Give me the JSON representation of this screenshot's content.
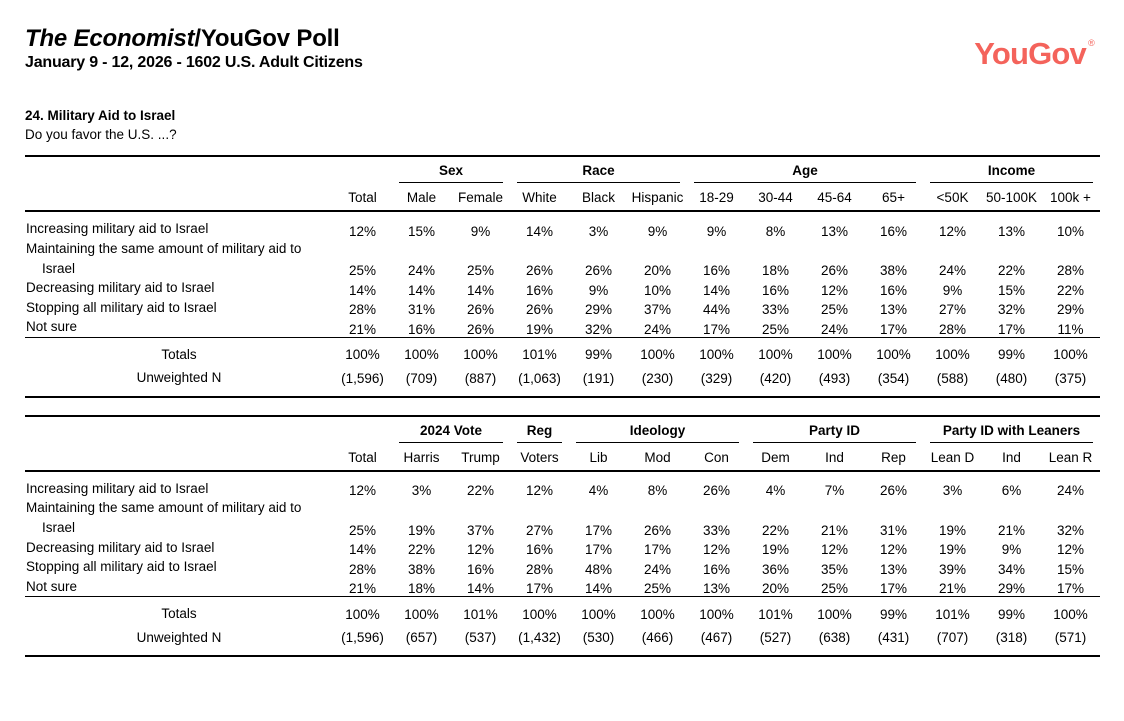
{
  "header": {
    "title_italic": "The Economist",
    "title_rest": "/YouGov Poll",
    "subtitle": "January 9 - 12, 2026 - 1602 U.S. Adult Citizens",
    "logo_text": "YouGov",
    "logo_reg": "®",
    "logo_color": "#F4635B"
  },
  "question": {
    "heading": "24. Military Aid to Israel",
    "text": "Do you favor the U.S. ...?"
  },
  "chart_data": [
    {
      "type": "table",
      "title": "Military Aid to Israel crosstabs by Sex, Race, Age, Income",
      "groups": [
        {
          "label": "",
          "span": 1
        },
        {
          "label": "Sex",
          "span": 2
        },
        {
          "label": "Race",
          "span": 3
        },
        {
          "label": "Age",
          "span": 4
        },
        {
          "label": "Income",
          "span": 3
        }
      ],
      "columns": [
        "Total",
        "Male",
        "Female",
        "White",
        "Black",
        "Hispanic",
        "18-29",
        "30-44",
        "45-64",
        "65+",
        "<50K",
        "50-100K",
        "100k +"
      ],
      "rows": [
        {
          "label": "Increasing military aid to Israel",
          "label2": "",
          "values": [
            "12%",
            "15%",
            "9%",
            "14%",
            "3%",
            "9%",
            "9%",
            "8%",
            "13%",
            "16%",
            "12%",
            "13%",
            "10%"
          ]
        },
        {
          "label": "Maintaining the same amount of military aid to",
          "label2": "Israel",
          "values": [
            "25%",
            "24%",
            "25%",
            "26%",
            "26%",
            "20%",
            "16%",
            "18%",
            "26%",
            "38%",
            "24%",
            "22%",
            "28%"
          ]
        },
        {
          "label": "Decreasing military aid to Israel",
          "label2": "",
          "values": [
            "14%",
            "14%",
            "14%",
            "16%",
            "9%",
            "10%",
            "14%",
            "16%",
            "12%",
            "16%",
            "9%",
            "15%",
            "22%"
          ]
        },
        {
          "label": "Stopping all military aid to Israel",
          "label2": "",
          "values": [
            "28%",
            "31%",
            "26%",
            "26%",
            "29%",
            "37%",
            "44%",
            "33%",
            "25%",
            "13%",
            "27%",
            "32%",
            "29%"
          ]
        },
        {
          "label": "Not sure",
          "label2": "",
          "values": [
            "21%",
            "16%",
            "26%",
            "19%",
            "32%",
            "24%",
            "17%",
            "25%",
            "24%",
            "17%",
            "28%",
            "17%",
            "11%"
          ]
        }
      ],
      "totals": {
        "label": "Totals",
        "values": [
          "100%",
          "100%",
          "100%",
          "101%",
          "99%",
          "100%",
          "100%",
          "100%",
          "100%",
          "100%",
          "100%",
          "99%",
          "100%"
        ]
      },
      "unweighted": {
        "label": "Unweighted N",
        "values": [
          "(1,596)",
          "(709)",
          "(887)",
          "(1,063)",
          "(191)",
          "(230)",
          "(329)",
          "(420)",
          "(493)",
          "(354)",
          "(588)",
          "(480)",
          "(375)"
        ]
      }
    },
    {
      "type": "table",
      "title": "Military Aid to Israel crosstabs by 2024 Vote, Registered Voters, Ideology, Party ID, Party ID with Leaners",
      "groups": [
        {
          "label": "",
          "span": 1
        },
        {
          "label": "2024 Vote",
          "span": 2
        },
        {
          "label": "Reg",
          "span": 1
        },
        {
          "label": "Ideology",
          "span": 3
        },
        {
          "label": "Party ID",
          "span": 3
        },
        {
          "label": "Party ID with Leaners",
          "span": 3
        }
      ],
      "columns": [
        "Total",
        "Harris",
        "Trump",
        "Voters",
        "Lib",
        "Mod",
        "Con",
        "Dem",
        "Ind",
        "Rep",
        "Lean D",
        "Ind",
        "Lean R"
      ],
      "rows": [
        {
          "label": "Increasing military aid to Israel",
          "label2": "",
          "values": [
            "12%",
            "3%",
            "22%",
            "12%",
            "4%",
            "8%",
            "26%",
            "4%",
            "7%",
            "26%",
            "3%",
            "6%",
            "24%"
          ]
        },
        {
          "label": "Maintaining the same amount of military aid to",
          "label2": "Israel",
          "values": [
            "25%",
            "19%",
            "37%",
            "27%",
            "17%",
            "26%",
            "33%",
            "22%",
            "21%",
            "31%",
            "19%",
            "21%",
            "32%"
          ]
        },
        {
          "label": "Decreasing military aid to Israel",
          "label2": "",
          "values": [
            "14%",
            "22%",
            "12%",
            "16%",
            "17%",
            "17%",
            "12%",
            "19%",
            "12%",
            "12%",
            "19%",
            "9%",
            "12%"
          ]
        },
        {
          "label": "Stopping all military aid to Israel",
          "label2": "",
          "values": [
            "28%",
            "38%",
            "16%",
            "28%",
            "48%",
            "24%",
            "16%",
            "36%",
            "35%",
            "13%",
            "39%",
            "34%",
            "15%"
          ]
        },
        {
          "label": "Not sure",
          "label2": "",
          "values": [
            "21%",
            "18%",
            "14%",
            "17%",
            "14%",
            "25%",
            "13%",
            "20%",
            "25%",
            "17%",
            "21%",
            "29%",
            "17%"
          ]
        }
      ],
      "totals": {
        "label": "Totals",
        "values": [
          "100%",
          "100%",
          "101%",
          "100%",
          "100%",
          "100%",
          "100%",
          "101%",
          "100%",
          "99%",
          "101%",
          "99%",
          "100%"
        ]
      },
      "unweighted": {
        "label": "Unweighted N",
        "values": [
          "(1,596)",
          "(657)",
          "(537)",
          "(1,432)",
          "(530)",
          "(466)",
          "(467)",
          "(527)",
          "(638)",
          "(431)",
          "(707)",
          "(318)",
          "(571)"
        ]
      }
    }
  ]
}
